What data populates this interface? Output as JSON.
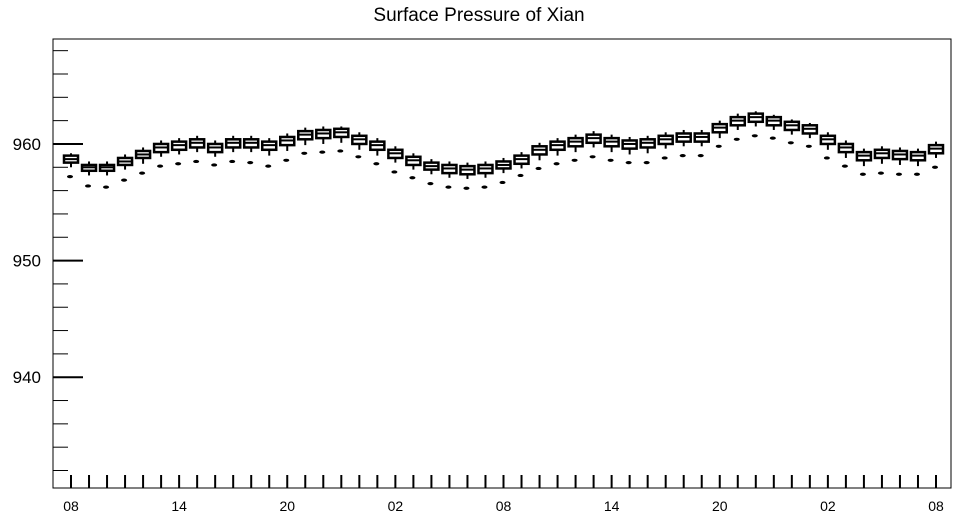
{
  "chart_data": {
    "type": "boxplot",
    "title": "Surface Pressure of Xian",
    "xlabel": "",
    "ylabel": "",
    "ylim": [
      930.5,
      969
    ],
    "y_ticks": [
      940,
      950,
      960
    ],
    "y_tick_labels": [
      "940",
      "950",
      "960"
    ],
    "x_tick_labels": [
      "08",
      "14",
      "20",
      "02",
      "08",
      "14",
      "20",
      "02",
      "08"
    ],
    "x_tick_label_positions": [
      0,
      6,
      12,
      18,
      24,
      30,
      36,
      42,
      48
    ],
    "time_step_hours": 1,
    "grid": false,
    "legend": "none",
    "box_color": "#000000",
    "medians": [
      958.7,
      958.0,
      958.0,
      958.5,
      959.1,
      959.7,
      959.9,
      960.1,
      959.7,
      960.1,
      960.1,
      959.9,
      960.3,
      960.8,
      960.9,
      961.0,
      960.4,
      959.9,
      959.2,
      958.6,
      958.1,
      957.9,
      957.8,
      957.9,
      958.2,
      958.7,
      959.5,
      959.9,
      960.2,
      960.5,
      960.2,
      960.0,
      960.1,
      960.4,
      960.6,
      960.6,
      961.4,
      962.0,
      962.3,
      962.0,
      961.6,
      961.3,
      960.4,
      959.7,
      959.0,
      959.2,
      959.1,
      959.0,
      959.6
    ],
    "q1": [
      958.4,
      957.7,
      957.7,
      958.2,
      958.8,
      959.3,
      959.5,
      959.7,
      959.3,
      959.7,
      959.7,
      959.5,
      959.9,
      960.4,
      960.5,
      960.6,
      960.0,
      959.5,
      958.8,
      958.2,
      957.8,
      957.5,
      957.4,
      957.5,
      957.9,
      958.3,
      959.1,
      959.5,
      959.8,
      960.1,
      959.8,
      959.6,
      959.7,
      960.0,
      960.2,
      960.2,
      961.0,
      961.6,
      961.9,
      961.6,
      961.2,
      960.9,
      960.0,
      959.3,
      958.6,
      958.8,
      958.7,
      958.6,
      959.2
    ],
    "q3": [
      959.0,
      958.2,
      958.2,
      958.8,
      959.4,
      960.0,
      960.2,
      960.4,
      960.0,
      960.4,
      960.4,
      960.2,
      960.6,
      961.1,
      961.2,
      961.3,
      960.7,
      960.2,
      959.5,
      958.9,
      958.4,
      958.2,
      958.1,
      958.2,
      958.5,
      959.0,
      959.8,
      960.2,
      960.5,
      960.8,
      960.5,
      960.3,
      960.4,
      960.7,
      960.9,
      960.9,
      961.7,
      962.3,
      962.6,
      962.3,
      961.9,
      961.6,
      960.7,
      960.0,
      959.3,
      959.5,
      959.4,
      959.3,
      959.9
    ],
    "whisker_low": [
      958.0,
      957.3,
      957.3,
      957.8,
      958.3,
      958.9,
      959.1,
      959.3,
      958.9,
      959.3,
      959.3,
      959.0,
      959.4,
      959.9,
      960.0,
      960.1,
      959.5,
      959.0,
      958.4,
      957.8,
      957.4,
      957.1,
      957.0,
      957.1,
      957.5,
      957.9,
      958.6,
      959.0,
      959.3,
      959.7,
      959.3,
      959.1,
      959.2,
      959.6,
      959.8,
      959.8,
      960.5,
      961.2,
      961.5,
      961.2,
      960.8,
      960.5,
      959.5,
      958.8,
      958.1,
      958.3,
      958.2,
      958.1,
      958.8
    ],
    "whisker_high": [
      959.2,
      958.5,
      958.5,
      959.1,
      959.7,
      960.3,
      960.5,
      960.7,
      960.3,
      960.7,
      960.7,
      960.5,
      960.9,
      961.4,
      961.5,
      961.5,
      961.0,
      960.5,
      959.8,
      959.2,
      958.7,
      958.5,
      958.4,
      958.5,
      958.8,
      959.3,
      960.1,
      960.5,
      960.8,
      961.1,
      960.8,
      960.6,
      960.7,
      961.0,
      961.2,
      961.2,
      962.0,
      962.6,
      962.8,
      962.5,
      962.1,
      961.8,
      961.0,
      960.3,
      959.6,
      959.8,
      959.7,
      959.6,
      960.2
    ],
    "outliers": [
      957.2,
      956.4,
      956.3,
      956.9,
      957.5,
      958.1,
      958.3,
      958.5,
      958.2,
      958.5,
      958.4,
      958.1,
      958.6,
      959.2,
      959.3,
      959.4,
      958.9,
      958.3,
      957.6,
      957.1,
      956.6,
      956.3,
      956.2,
      956.3,
      956.7,
      957.3,
      957.9,
      958.3,
      958.6,
      958.9,
      958.6,
      958.4,
      958.4,
      958.8,
      959.0,
      959.0,
      959.8,
      960.4,
      960.7,
      960.5,
      960.1,
      959.8,
      958.8,
      958.1,
      957.4,
      957.5,
      957.4,
      957.4,
      958.0
    ]
  }
}
